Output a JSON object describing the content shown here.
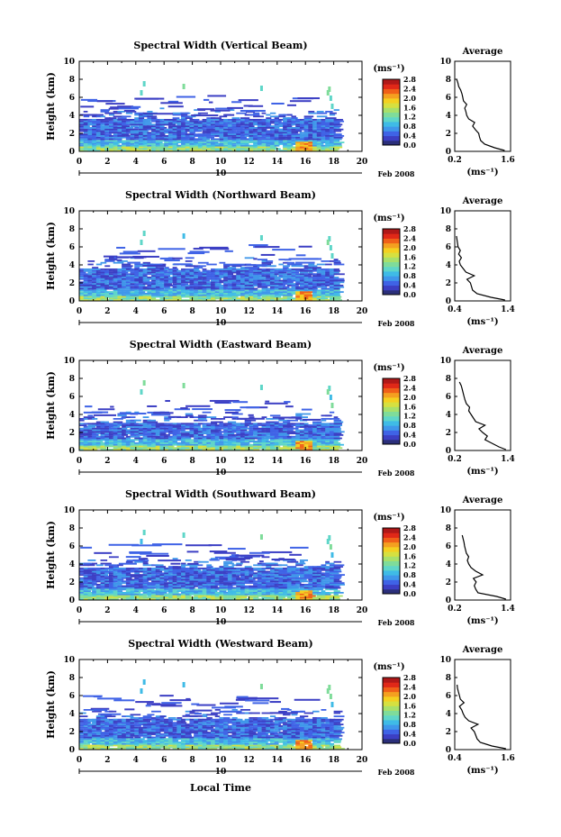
{
  "figure": {
    "x_axis_title": "Local Time",
    "date_label": "Feb 2008",
    "day_label": "10",
    "colorbar_unit_label": "(ms⁻¹)",
    "colorbar_ticks": [
      "0.0",
      "0.4",
      "0.8",
      "1.2",
      "1.6",
      "2.0",
      "2.4",
      "2.8"
    ],
    "colorbar_colors": [
      "#2b2f7a",
      "#3c3fc4",
      "#3f63e6",
      "#3f97ea",
      "#3fbbe6",
      "#5fd6c8",
      "#7fdc9a",
      "#a8e06a",
      "#d6e040",
      "#f4d020",
      "#f4a020",
      "#f06018",
      "#e02818",
      "#b01818"
    ],
    "avg_title": "Average",
    "avg_xlabel": "(ms⁻¹)",
    "beam_colors": {
      "low": "#3f63e6",
      "mid": "#3fbbe6",
      "high": "#a8e06a",
      "peak": "#f4a020",
      "outline": "#000000",
      "profile": "#000000"
    }
  },
  "chart_data": [
    {
      "type": "heatmap",
      "title": "Spectral Width (Vertical Beam)",
      "ylabel": "Height (km)",
      "xlabel": "",
      "x_ticks": [
        0,
        2,
        4,
        6,
        8,
        10,
        12,
        14,
        16,
        18,
        20
      ],
      "y_ticks": [
        0,
        2,
        4,
        6,
        8,
        10
      ],
      "xlim": [
        0,
        20
      ],
      "ylim": [
        0,
        10
      ],
      "colorbar_range": [
        0,
        2.8
      ],
      "data_extent": {
        "time": [
          0,
          18.3
        ],
        "height": [
          0,
          3.5
        ]
      },
      "average_profile": {
        "xlim": [
          0.2,
          1.6
        ],
        "x_ticks": [
          "0.2",
          "1.6"
        ],
        "ylim": [
          0,
          10
        ],
        "y_ticks": [
          0,
          2,
          4,
          6,
          8,
          10
        ],
        "height": [
          0.1,
          0.4,
          0.8,
          1.2,
          1.6,
          2.0,
          2.4,
          2.8,
          3.2,
          3.6,
          4.0,
          4.4,
          4.8,
          5.2,
          5.6,
          6.0,
          6.4,
          6.8,
          7.2,
          7.6,
          8.0
        ],
        "value": [
          1.45,
          1.2,
          0.95,
          0.85,
          0.82,
          0.8,
          0.72,
          0.65,
          0.7,
          0.55,
          0.5,
          0.48,
          0.45,
          0.5,
          0.42,
          0.4,
          0.38,
          0.35,
          0.3,
          0.28,
          0.25
        ]
      }
    },
    {
      "type": "heatmap",
      "title": "Spectral Width (Northward Beam)",
      "ylabel": "Height (km)",
      "xlabel": "",
      "x_ticks": [
        0,
        2,
        4,
        6,
        8,
        10,
        12,
        14,
        16,
        18,
        20
      ],
      "y_ticks": [
        0,
        2,
        4,
        6,
        8,
        10
      ],
      "xlim": [
        0,
        20
      ],
      "ylim": [
        0,
        10
      ],
      "colorbar_range": [
        0,
        2.8
      ],
      "data_extent": {
        "time": [
          0,
          18.3
        ],
        "height": [
          0,
          3.5
        ]
      },
      "average_profile": {
        "xlim": [
          0.4,
          1.4
        ],
        "x_ticks": [
          "0.4",
          "1.4"
        ],
        "ylim": [
          0,
          10
        ],
        "y_ticks": [
          0,
          2,
          4,
          6,
          8,
          10
        ],
        "height": [
          0.1,
          0.4,
          0.8,
          1.2,
          1.6,
          2.0,
          2.4,
          2.8,
          3.2,
          3.6,
          4.0,
          4.4,
          4.8,
          5.2,
          5.6,
          6.0,
          6.4,
          6.8,
          7.2
        ],
        "value": [
          1.3,
          1.05,
          0.8,
          0.72,
          0.7,
          0.68,
          0.62,
          0.75,
          0.6,
          0.55,
          0.5,
          0.48,
          0.52,
          0.47,
          0.5,
          0.46,
          0.45,
          0.44,
          0.43
        ]
      }
    },
    {
      "type": "heatmap",
      "title": "Spectral Width (Eastward Beam)",
      "ylabel": "Height (km)",
      "xlabel": "",
      "x_ticks": [
        0,
        2,
        4,
        6,
        8,
        10,
        12,
        14,
        16,
        18,
        20
      ],
      "y_ticks": [
        0,
        2,
        4,
        6,
        8,
        10
      ],
      "xlim": [
        0,
        20
      ],
      "ylim": [
        0,
        10
      ],
      "colorbar_range": [
        0,
        2.8
      ],
      "data_extent": {
        "time": [
          0,
          18.3
        ],
        "height": [
          0,
          3.0
        ]
      },
      "average_profile": {
        "xlim": [
          0.2,
          1.4
        ],
        "x_ticks": [
          "0.2",
          "1.4"
        ],
        "ylim": [
          0,
          10
        ],
        "y_ticks": [
          0,
          2,
          4,
          6,
          8,
          10
        ],
        "height": [
          0.1,
          0.4,
          0.8,
          1.2,
          1.6,
          2.0,
          2.4,
          2.8,
          3.2,
          3.6,
          4.0,
          4.4,
          4.8,
          5.2,
          5.6,
          6.0,
          6.4,
          6.8,
          7.2,
          7.6
        ],
        "value": [
          1.3,
          1.15,
          1.0,
          0.85,
          0.9,
          0.8,
          0.72,
          0.85,
          0.65,
          0.6,
          0.55,
          0.5,
          0.52,
          0.45,
          0.42,
          0.4,
          0.38,
          0.36,
          0.34,
          0.3
        ]
      }
    },
    {
      "type": "heatmap",
      "title": "Spectral Width (Southward Beam)",
      "ylabel": "Height (km)",
      "xlabel": "",
      "x_ticks": [
        0,
        2,
        4,
        6,
        8,
        10,
        12,
        14,
        16,
        18,
        20
      ],
      "y_ticks": [
        0,
        2,
        4,
        6,
        8,
        10
      ],
      "xlim": [
        0,
        20
      ],
      "ylim": [
        0,
        10
      ],
      "colorbar_range": [
        0,
        2.8
      ],
      "data_extent": {
        "time": [
          0,
          18.3
        ],
        "height": [
          0,
          3.5
        ]
      },
      "average_profile": {
        "xlim": [
          0.2,
          1.4
        ],
        "x_ticks": [
          "0.2",
          "1.4"
        ],
        "ylim": [
          0,
          10
        ],
        "y_ticks": [
          0,
          2,
          4,
          6,
          8,
          10
        ],
        "height": [
          0.1,
          0.4,
          0.8,
          1.2,
          1.6,
          2.0,
          2.4,
          2.8,
          3.2,
          3.6,
          4.0,
          4.4,
          4.8,
          5.2,
          5.6,
          6.0,
          6.4,
          6.8,
          7.2
        ],
        "value": [
          1.3,
          1.1,
          0.7,
          0.65,
          0.62,
          0.66,
          0.6,
          0.8,
          0.65,
          0.55,
          0.5,
          0.47,
          0.5,
          0.45,
          0.43,
          0.41,
          0.4,
          0.38,
          0.36
        ]
      }
    },
    {
      "type": "heatmap",
      "title": "Spectral Width (Westward Beam)",
      "ylabel": "Height (km)",
      "xlabel": "",
      "x_ticks": [
        0,
        2,
        4,
        6,
        8,
        10,
        12,
        14,
        16,
        18,
        20
      ],
      "y_ticks": [
        0,
        2,
        4,
        6,
        8,
        10
      ],
      "xlim": [
        0,
        20
      ],
      "ylim": [
        0,
        10
      ],
      "colorbar_range": [
        0,
        2.8
      ],
      "data_extent": {
        "time": [
          0,
          18.3
        ],
        "height": [
          0,
          3.3
        ]
      },
      "average_profile": {
        "xlim": [
          0.4,
          1.6
        ],
        "x_ticks": [
          "0.4",
          "1.6"
        ],
        "ylim": [
          0,
          10
        ],
        "y_ticks": [
          0,
          2,
          4,
          6,
          8,
          10
        ],
        "height": [
          0.1,
          0.4,
          0.8,
          1.2,
          1.6,
          2.0,
          2.4,
          2.8,
          3.2,
          3.6,
          4.0,
          4.4,
          4.8,
          5.2,
          5.6,
          6.0,
          6.4,
          6.8,
          7.2
        ],
        "value": [
          1.5,
          1.2,
          0.95,
          0.88,
          0.85,
          0.82,
          0.75,
          0.9,
          0.7,
          0.62,
          0.58,
          0.55,
          0.5,
          0.6,
          0.52,
          0.5,
          0.48,
          0.46,
          0.45
        ]
      }
    }
  ]
}
